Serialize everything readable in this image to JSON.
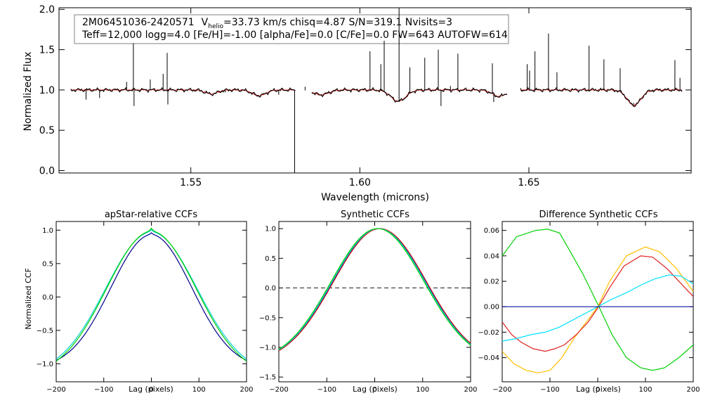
{
  "chart_data": [
    {
      "id": "spectrum",
      "type": "line",
      "title": "",
      "xlabel": "Wavelength (microns)",
      "ylabel": "Normalized Flux",
      "xlim": [
        1.511,
        1.698
      ],
      "ylim": [
        -0.03,
        2.02
      ],
      "xticks": [
        1.55,
        1.6,
        1.65
      ],
      "xticklabels": [
        "1.55",
        "1.60",
        "1.65"
      ],
      "yticks": [
        0.0,
        0.5,
        1.0,
        1.5,
        2.0
      ],
      "yticklabels": [
        "0.0",
        "0.5",
        "1.0",
        "1.5",
        "2.0"
      ],
      "info": {
        "star_id": "2M06451036-2420571",
        "v_main": "V",
        "v_sub": "helio",
        "line1_rest": "=33.73 km/s  chisq=4.87  S/N=319.1  Nvisits=3",
        "line2": "Teff=12,000 logg=4.0 [Fe/H]=-1.00 [alpha/Fe]=0.0 [C/Fe]=0.0 FW=643 AUTOFW=614"
      },
      "chips": [
        [
          1.5145,
          1.5809
        ],
        [
          1.5858,
          1.6435
        ],
        [
          1.6475,
          1.6953
        ]
      ],
      "continuum_level": 1.0,
      "absorption_lines": [
        {
          "center": 1.5561,
          "depth": 0.05,
          "width": 0.0018
        },
        {
          "center": 1.5702,
          "depth": 0.07,
          "width": 0.002
        },
        {
          "center": 1.5885,
          "depth": 0.06,
          "width": 0.0022
        },
        {
          "center": 1.6114,
          "depth": 0.14,
          "width": 0.0022
        },
        {
          "center": 1.6412,
          "depth": 0.08,
          "width": 0.002
        },
        {
          "center": 1.6811,
          "depth": 0.19,
          "width": 0.002
        }
      ],
      "spikes": [
        {
          "x": 1.519,
          "y": 0.88
        },
        {
          "x": 1.523,
          "y": 0.9
        },
        {
          "x": 1.531,
          "y": 1.1
        },
        {
          "x": 1.533,
          "y": 1.58
        },
        {
          "x": 1.5332,
          "y": 0.8
        },
        {
          "x": 1.538,
          "y": 1.13
        },
        {
          "x": 1.5418,
          "y": 1.2
        },
        {
          "x": 1.543,
          "y": 1.46
        },
        {
          "x": 1.5432,
          "y": 0.82
        },
        {
          "x": 1.5602,
          "y": 0.97
        },
        {
          "x": 1.5688,
          "y": 0.94
        },
        {
          "x": 1.576,
          "y": 0.94
        },
        {
          "x": 1.5807,
          "y": -0.03
        },
        {
          "x": 1.5838,
          "y": 1.04
        },
        {
          "x": 1.603,
          "y": 1.48
        },
        {
          "x": 1.6062,
          "y": 1.32
        },
        {
          "x": 1.6072,
          "y": 1.61
        },
        {
          "x": 1.6116,
          "y": 2.02
        },
        {
          "x": 1.6148,
          "y": 1.28
        },
        {
          "x": 1.6192,
          "y": 1.4
        },
        {
          "x": 1.6232,
          "y": 1.5
        },
        {
          "x": 1.624,
          "y": 0.8
        },
        {
          "x": 1.6268,
          "y": 1.05
        },
        {
          "x": 1.629,
          "y": 1.45
        },
        {
          "x": 1.6392,
          "y": 1.33
        },
        {
          "x": 1.6396,
          "y": 0.85
        },
        {
          "x": 1.6495,
          "y": 1.32
        },
        {
          "x": 1.6502,
          "y": 1.24
        },
        {
          "x": 1.6518,
          "y": 1.48
        },
        {
          "x": 1.6558,
          "y": 1.7
        },
        {
          "x": 1.6583,
          "y": 1.22
        },
        {
          "x": 1.6678,
          "y": 1.55
        },
        {
          "x": 1.6722,
          "y": 1.38
        },
        {
          "x": 1.677,
          "y": 1.27
        },
        {
          "x": 1.681,
          "y": 0.84
        },
        {
          "x": 1.6932,
          "y": 1.37
        },
        {
          "x": 1.6947,
          "y": 1.15
        }
      ],
      "series": [
        {
          "name": "observed",
          "color": "#000000"
        },
        {
          "name": "model",
          "color": "#d62020"
        }
      ]
    },
    {
      "id": "apstar-ccf",
      "type": "line",
      "title": "apStar-relative CCFs",
      "xlabel": "Lag (pixels)",
      "ylabel": "Normalized CCF",
      "xlim": [
        -200,
        200
      ],
      "ylim": [
        -1.27,
        1.13
      ],
      "xticks": [
        -200,
        -100,
        0,
        100,
        200
      ],
      "xticklabels": [
        "−200",
        "−100",
        "0",
        "100",
        "200"
      ],
      "yticks": [
        -1.0,
        -0.5,
        0.0,
        0.5,
        1.0
      ],
      "yticklabels": [
        "−1.0",
        "−0.5",
        "0.0",
        "0.5",
        "1.0"
      ],
      "series": [
        {
          "name": "visit-1",
          "color": "#00008b",
          "peak": 0.93,
          "sigma": 85,
          "floor": 0.95,
          "offset": 0,
          "cusp": 0.03
        },
        {
          "name": "visit-2",
          "color": "#00ced1",
          "peak": 0.97,
          "sigma": 96,
          "floor": 0.93,
          "offset": 0,
          "cusp": 0.04
        },
        {
          "name": "visit-3",
          "color": "#00d000",
          "peak": 0.98,
          "sigma": 94,
          "floor": 0.96,
          "offset": 0,
          "cusp": 0.05
        }
      ]
    },
    {
      "id": "synthetic-ccf",
      "type": "line",
      "title": "Synthetic CCFs",
      "xlabel": "Lag (pixels)",
      "ylabel": "",
      "xlim": [
        -200,
        200
      ],
      "ylim": [
        -1.58,
        1.12
      ],
      "xticks": [
        -200,
        -100,
        0,
        100,
        200
      ],
      "xticklabels": [
        "−200",
        "−100",
        "0",
        "100",
        "200"
      ],
      "yticks": [
        -1.5,
        -1.0,
        -0.5,
        0.0,
        0.5,
        1.0
      ],
      "yticklabels": [
        "−1.5",
        "−1.0",
        "−0.5",
        "0.0",
        "0.5",
        "1.0"
      ],
      "zero_line": true,
      "series": [
        {
          "name": "visit-1",
          "color": "#00008b",
          "peak": 1.0,
          "sigma": 97,
          "floor": 1.0,
          "offset": 10
        },
        {
          "name": "visit-2",
          "color": "#d62020",
          "peak": 1.0,
          "sigma": 97,
          "floor": 1.0,
          "offset": 11
        },
        {
          "name": "visit-3",
          "color": "#00ced1",
          "peak": 1.0,
          "sigma": 97,
          "floor": 1.0,
          "offset": 8
        },
        {
          "name": "visit-4",
          "color": "#00d000",
          "peak": 1.0,
          "sigma": 97,
          "floor": 1.0,
          "offset": 6
        }
      ]
    },
    {
      "id": "difference-ccf",
      "type": "line",
      "title": "Difference Synthetic CCFs",
      "xlabel": "Lag (pixels)",
      "ylabel": "",
      "xlim": [
        -200,
        200
      ],
      "ylim": [
        -0.059,
        0.067
      ],
      "xticks": [
        -200,
        -100,
        0,
        100,
        200
      ],
      "xticklabels": [
        "−200",
        "−100",
        "0",
        "100",
        "200"
      ],
      "yticks": [
        -0.04,
        -0.02,
        0.0,
        0.02,
        0.04,
        0.06
      ],
      "yticklabels": [
        "−0.04",
        "−0.02",
        "0.00",
        "0.02",
        "0.04",
        "0.06"
      ],
      "series": [
        {
          "name": "green",
          "color": "#00d000",
          "points": [
            [
              -200,
              0.04
            ],
            [
              -170,
              0.055
            ],
            [
              -130,
              0.06
            ],
            [
              -105,
              0.061
            ],
            [
              -80,
              0.058
            ],
            [
              -60,
              0.045
            ],
            [
              -30,
              0.025
            ],
            [
              0,
              0.002
            ],
            [
              30,
              -0.022
            ],
            [
              60,
              -0.04
            ],
            [
              90,
              -0.048
            ],
            [
              115,
              -0.05
            ],
            [
              140,
              -0.048
            ],
            [
              170,
              -0.04
            ],
            [
              200,
              -0.03
            ]
          ]
        },
        {
          "name": "orange",
          "color": "#ffc000",
          "points": [
            [
              -200,
              -0.035
            ],
            [
              -175,
              -0.045
            ],
            [
              -150,
              -0.05
            ],
            [
              -125,
              -0.052
            ],
            [
              -100,
              -0.05
            ],
            [
              -75,
              -0.04
            ],
            [
              -50,
              -0.025
            ],
            [
              -20,
              -0.01
            ],
            [
              0,
              0.0
            ],
            [
              25,
              0.02
            ],
            [
              60,
              0.04
            ],
            [
              100,
              0.047
            ],
            [
              130,
              0.043
            ],
            [
              165,
              0.03
            ],
            [
              200,
              0.012
            ]
          ]
        },
        {
          "name": "red",
          "color": "#e02020",
          "points": [
            [
              -200,
              -0.012
            ],
            [
              -180,
              -0.022
            ],
            [
              -160,
              -0.028
            ],
            [
              -135,
              -0.033
            ],
            [
              -110,
              -0.035
            ],
            [
              -90,
              -0.033
            ],
            [
              -70,
              -0.03
            ],
            [
              -45,
              -0.022
            ],
            [
              -20,
              -0.012
            ],
            [
              0,
              -0.001
            ],
            [
              25,
              0.015
            ],
            [
              55,
              0.032
            ],
            [
              90,
              0.04
            ],
            [
              115,
              0.039
            ],
            [
              145,
              0.03
            ],
            [
              175,
              0.018
            ],
            [
              200,
              0.008
            ]
          ]
        },
        {
          "name": "cyan",
          "color": "#00e0ff",
          "points": [
            [
              -200,
              -0.027
            ],
            [
              -170,
              -0.025
            ],
            [
              -140,
              -0.022
            ],
            [
              -110,
              -0.02
            ],
            [
              -80,
              -0.016
            ],
            [
              -50,
              -0.01
            ],
            [
              -20,
              -0.004
            ],
            [
              0,
              0.0
            ],
            [
              30,
              0.006
            ],
            [
              60,
              0.011
            ],
            [
              90,
              0.017
            ],
            [
              120,
              0.022
            ],
            [
              150,
              0.025
            ],
            [
              175,
              0.024
            ],
            [
              200,
              0.018
            ]
          ]
        },
        {
          "name": "blue",
          "color": "#1010a0",
          "points": [
            [
              -200,
              0.0
            ],
            [
              200,
              0.0
            ]
          ]
        }
      ]
    }
  ]
}
